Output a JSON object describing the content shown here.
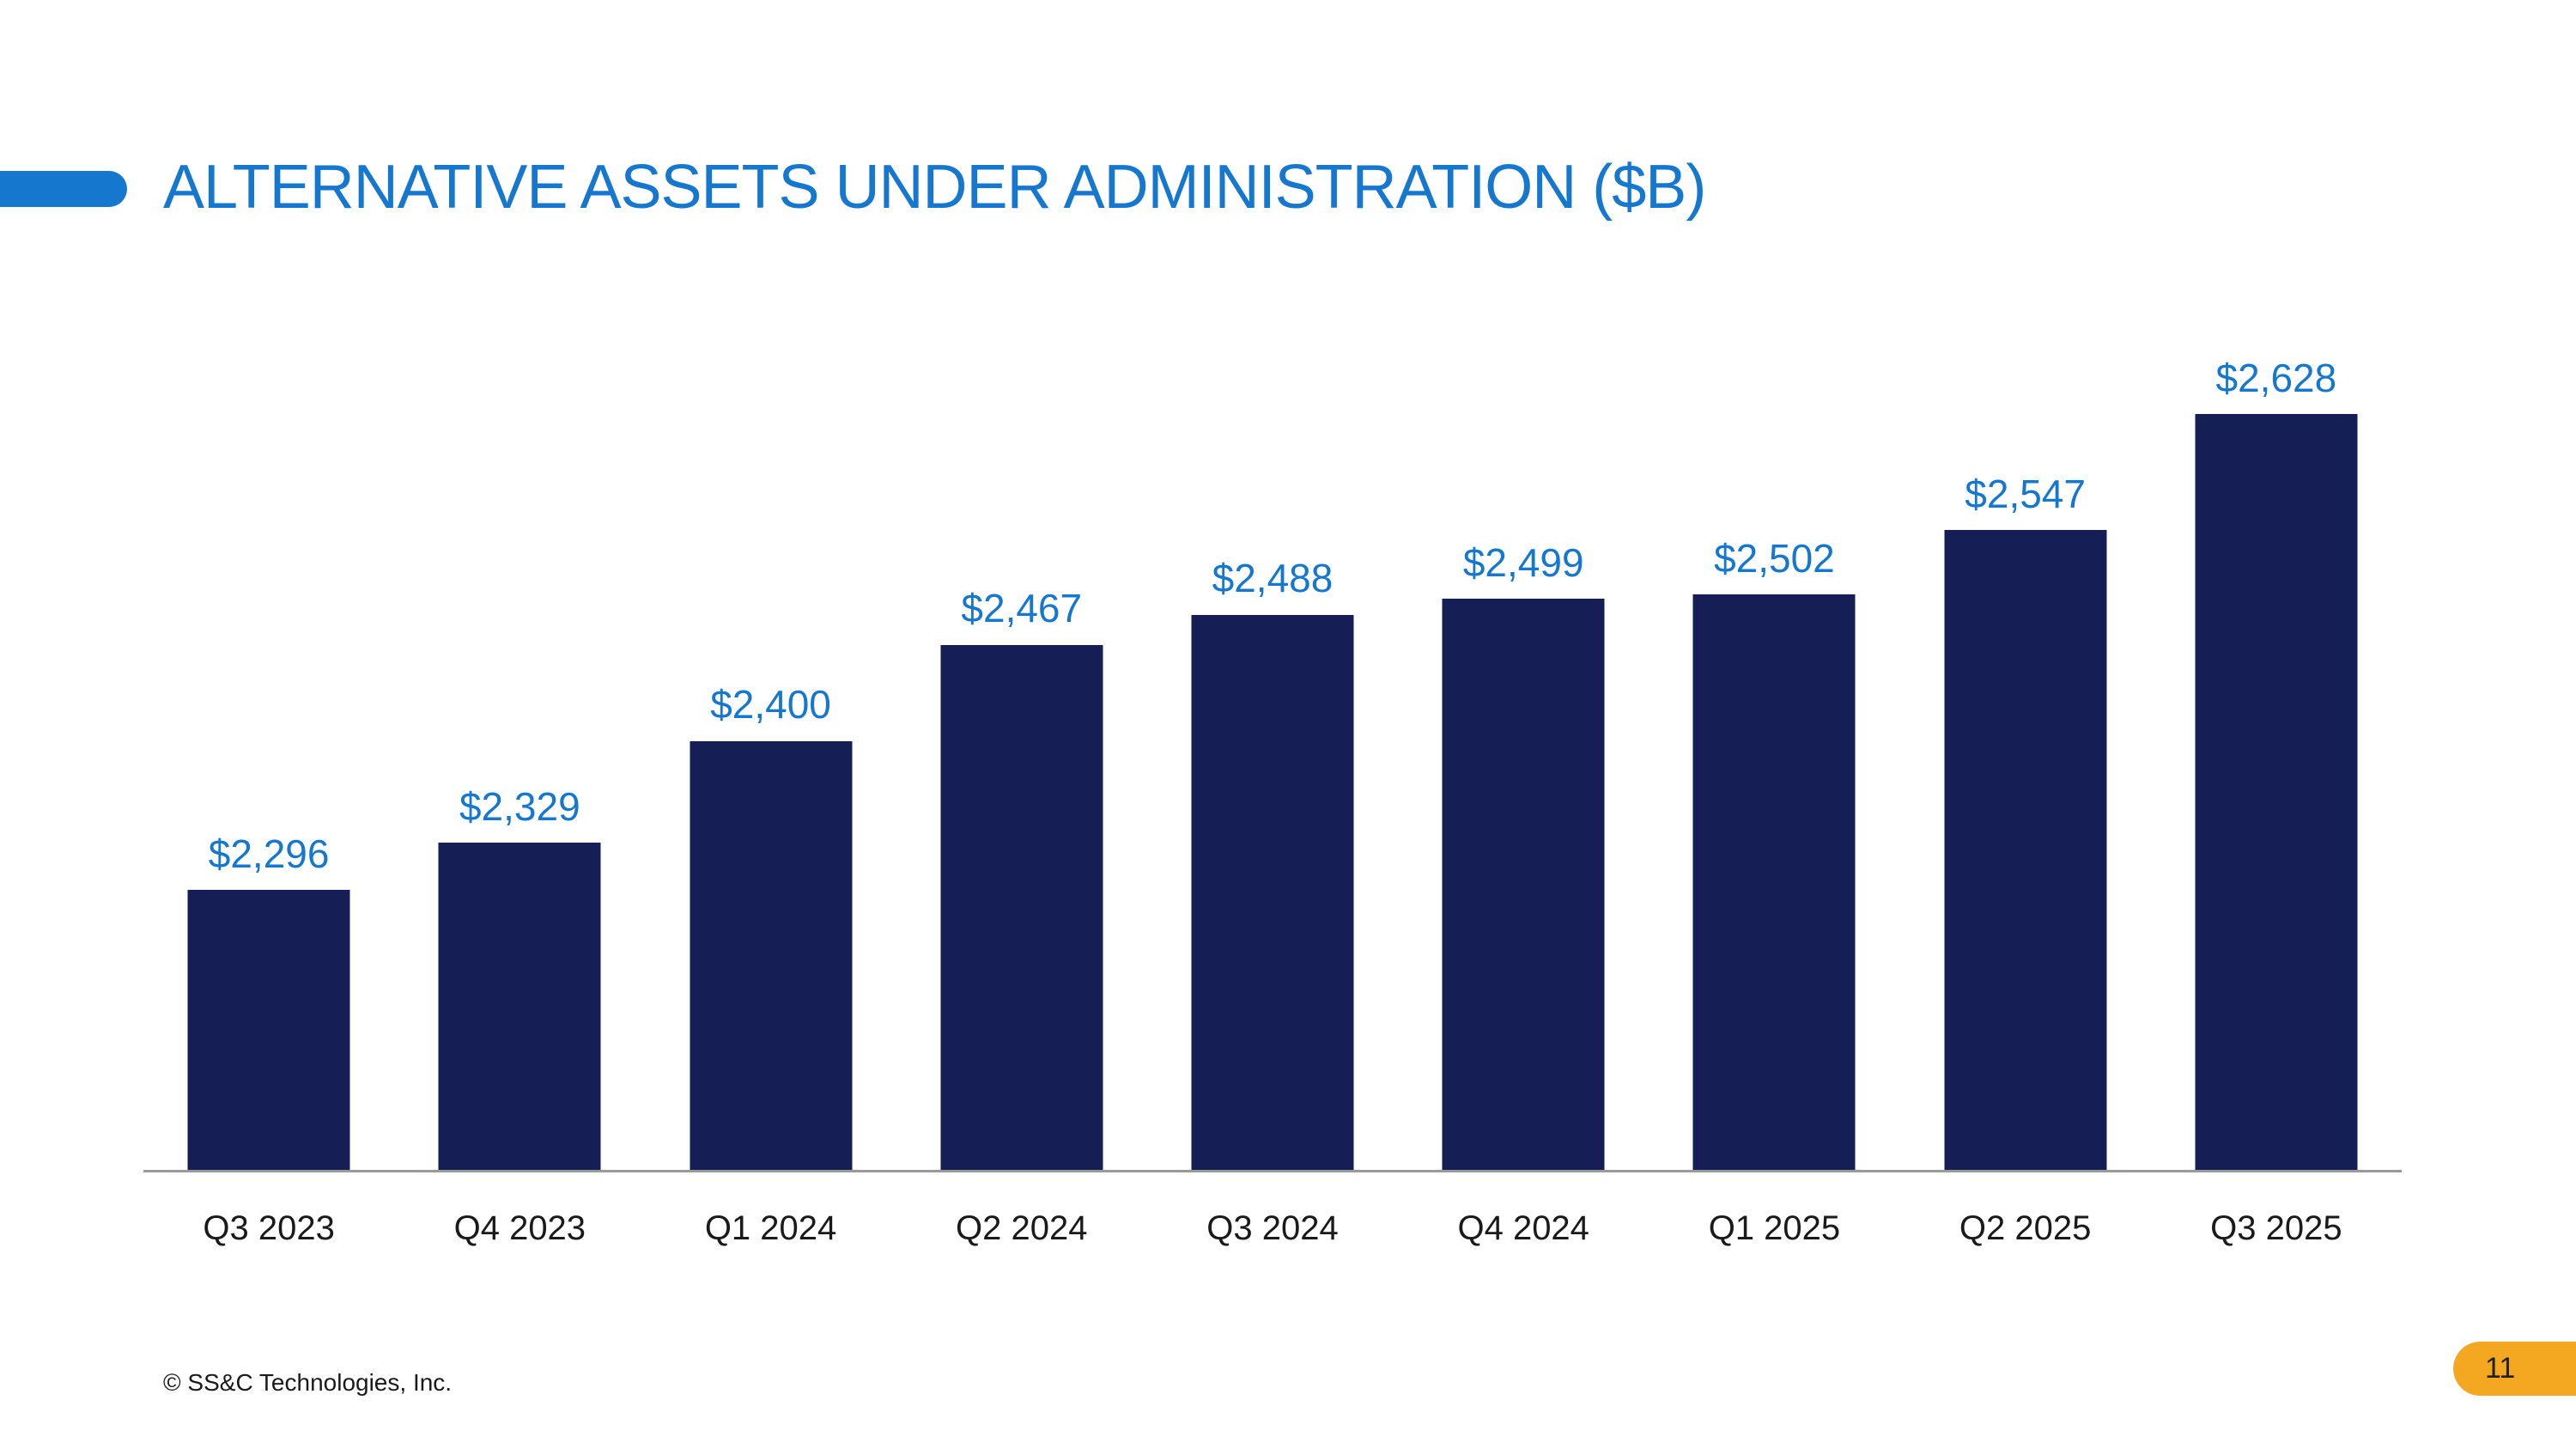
{
  "slide": {
    "title": "ALTERNATIVE ASSETS UNDER ADMINISTRATION ($B)",
    "footer": {
      "copyright": "© SS&C Technologies, Inc.",
      "page_number": "11"
    },
    "colors": {
      "brand_blue": "#1577CE",
      "label_blue": "#1577CE",
      "bar_navy": "#151F55",
      "badge_gold": "#F4A720",
      "axis_line": "#9A9A9A",
      "text_dark": "#1A1A1A"
    }
  },
  "chart_data": {
    "type": "bar",
    "title": "ALTERNATIVE ASSETS UNDER ADMINISTRATION ($B)",
    "categories": [
      "Q3 2023",
      "Q4 2023",
      "Q1 2024",
      "Q2 2024",
      "Q3 2024",
      "Q4 2024",
      "Q1 2025",
      "Q2 2025",
      "Q3 2025"
    ],
    "values": [
      2296,
      2329,
      2400,
      2467,
      2488,
      2499,
      2502,
      2547,
      2628
    ],
    "data_labels": [
      "$2,296",
      "$2,329",
      "$2,400",
      "$2,467",
      "$2,488",
      "$2,499",
      "$2,502",
      "$2,547",
      "$2,628"
    ],
    "xlabel": "",
    "ylabel": "",
    "ylim": [
      2100,
      2700
    ],
    "grid": false,
    "legend": "none",
    "bar_color": "#151F55",
    "label_color": "#1577CE"
  }
}
